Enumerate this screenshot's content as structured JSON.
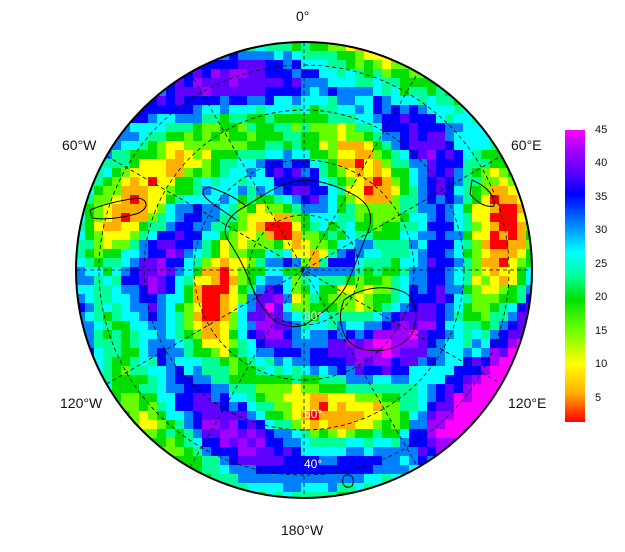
{
  "map": {
    "projection": "south-polar-stereographic",
    "longitude_labels": [
      {
        "key": "lon-0",
        "text": "0°"
      },
      {
        "key": "lon-60e",
        "text": "60°E"
      },
      {
        "key": "lon-120e",
        "text": "120°E"
      },
      {
        "key": "lon-180w",
        "text": "180°W"
      },
      {
        "key": "lon-120w",
        "text": "120°W"
      },
      {
        "key": "lon-60w",
        "text": "60°W"
      }
    ],
    "latitude_labels": [
      {
        "key": "lat-80",
        "text": "80°"
      },
      {
        "key": "lat-60",
        "text": "60°"
      },
      {
        "key": "lat-40",
        "text": "40°"
      }
    ],
    "graticule": {
      "style": "dashed",
      "color": "#000000"
    },
    "coastline_color": "#000000"
  },
  "colorbar": {
    "min": 1,
    "max": 45,
    "ticks": [
      "45",
      "40",
      "35",
      "30",
      "25",
      "20",
      "15",
      "10",
      "5"
    ],
    "colors_low_to_high": [
      "#ff0000",
      "#ffb000",
      "#ffff00",
      "#66ff00",
      "#00e000",
      "#00ff99",
      "#00ffff",
      "#0080ff",
      "#0000ff",
      "#6000ff",
      "#a000ff",
      "#ff00ff"
    ]
  }
}
